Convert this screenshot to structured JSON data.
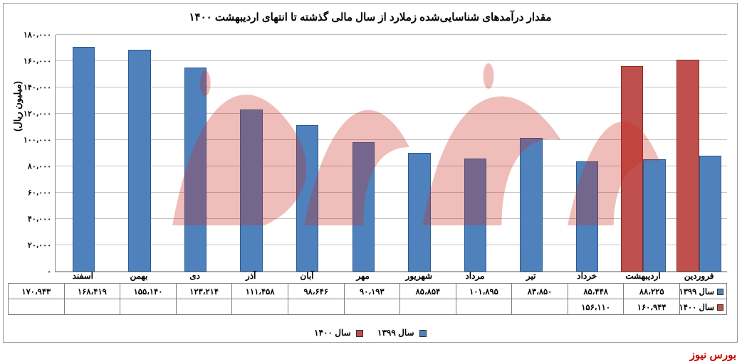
{
  "chart": {
    "type": "bar",
    "title": "مقدار درآمدهای شناسایی‌شده زملارد از سال مالی گذشته تا انتهای اردیبهشت ۱۴۰۰",
    "y_axis_label": "(میلیون ریال)",
    "categories": [
      "فروردین",
      "اردیبهشت",
      "خرداد",
      "تیر",
      "مرداد",
      "شهریور",
      "مهر",
      "آبان",
      "آذر",
      "دی",
      "بهمن",
      "اسفند"
    ],
    "series": [
      {
        "name": "سال ۱۳۹۹",
        "color": "#4f81bd",
        "border": "#2a5a90",
        "values": [
          88225,
          85448,
          83850,
          101895,
          85854,
          90193,
          98646,
          111458,
          123214,
          155140,
          168419,
          170943
        ],
        "labels": [
          "۸۸،۲۲۵",
          "۸۵،۴۴۸",
          "۸۳،۸۵۰",
          "۱۰۱،۸۹۵",
          "۸۵،۸۵۴",
          "۹۰،۱۹۳",
          "۹۸،۶۴۶",
          "۱۱۱،۴۵۸",
          "۱۲۳،۲۱۴",
          "۱۵۵،۱۴۰",
          "۱۶۸،۴۱۹",
          "۱۷۰،۹۴۳"
        ]
      },
      {
        "name": "سال ۱۴۰۰",
        "color": "#c0504d",
        "border": "#8a2a24",
        "values": [
          160944,
          156110,
          null,
          null,
          null,
          null,
          null,
          null,
          null,
          null,
          null,
          null
        ],
        "labels": [
          "۱۶۰،۹۴۴",
          "۱۵۶،۱۱۰",
          "",
          "",
          "",
          "",
          "",
          "",
          "",
          "",
          "",
          ""
        ]
      }
    ],
    "ylim": [
      0,
      180000
    ],
    "ytick_step": 20000,
    "ytick_labels": [
      "۰",
      "۲۰،۰۰۰",
      "۴۰،۰۰۰",
      "۶۰،۰۰۰",
      "۸۰،۰۰۰",
      "۱۰۰،۰۰۰",
      "۱۲۰،۰۰۰",
      "۱۴۰،۰۰۰",
      "۱۶۰،۰۰۰",
      "۱۸۰،۰۰۰"
    ],
    "background_color": "#ffffff",
    "grid_color": "#bfbfbf",
    "title_fontsize": 15,
    "label_fontsize": 12,
    "tick_fontsize": 11,
    "bar_width": 0.4
  },
  "legend": {
    "items": [
      {
        "label": "سال ۱۳۹۹",
        "color": "#4f81bd"
      },
      {
        "label": "سال ۱۴۰۰",
        "color": "#c0504d"
      }
    ]
  },
  "footer": {
    "brand": "بورس نیوز"
  },
  "watermark": {
    "text": "بورس نیوز",
    "color": "#cc2a22"
  }
}
